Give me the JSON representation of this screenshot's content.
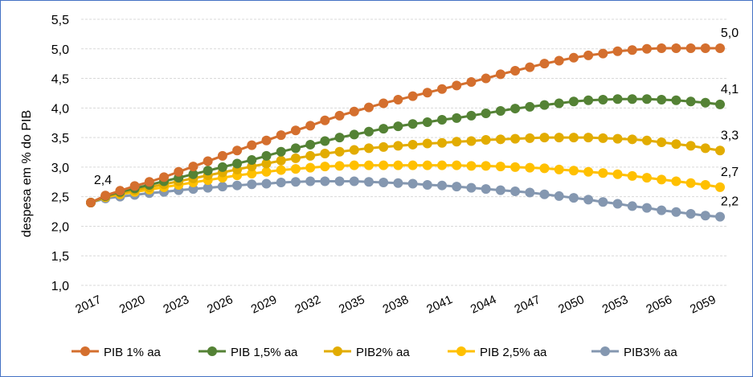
{
  "chart_data": {
    "type": "line",
    "title": "",
    "xlabel": "",
    "ylabel": "despesa em % do PIB",
    "ylim": [
      1.0,
      5.5
    ],
    "yticks": [
      "1,0",
      "1,5",
      "2,0",
      "2,5",
      "3,0",
      "3,5",
      "4,0",
      "4,5",
      "5,0",
      "5,5"
    ],
    "x": [
      2017,
      2018,
      2019,
      2020,
      2021,
      2022,
      2023,
      2024,
      2025,
      2026,
      2027,
      2028,
      2029,
      2030,
      2031,
      2032,
      2033,
      2034,
      2035,
      2036,
      2037,
      2038,
      2039,
      2040,
      2041,
      2042,
      2043,
      2044,
      2045,
      2046,
      2047,
      2048,
      2049,
      2050,
      2051,
      2052,
      2053,
      2054,
      2055,
      2056,
      2057,
      2058,
      2059,
      2060
    ],
    "xticks": [
      "2017",
      "2020",
      "2023",
      "2026",
      "2029",
      "2032",
      "2035",
      "2038",
      "2041",
      "2044",
      "2047",
      "2050",
      "2053",
      "2056",
      "2059"
    ],
    "grid": true,
    "legend_position": "bottom",
    "start_label": "2,4",
    "series": [
      {
        "name": "PIB 1% aa",
        "color": "#D46F2E",
        "end_label": "5,0",
        "values": [
          2.4,
          2.52,
          2.6,
          2.68,
          2.75,
          2.83,
          2.92,
          3.01,
          3.1,
          3.19,
          3.28,
          3.37,
          3.45,
          3.54,
          3.62,
          3.7,
          3.79,
          3.87,
          3.94,
          4.01,
          4.08,
          4.14,
          4.2,
          4.26,
          4.32,
          4.38,
          4.44,
          4.5,
          4.57,
          4.63,
          4.69,
          4.75,
          4.8,
          4.85,
          4.89,
          4.92,
          4.96,
          4.98,
          5.0,
          5.01,
          5.01,
          5.01,
          5.01,
          5.01
        ]
      },
      {
        "name": "PIB 1,5% aa",
        "color": "#548235",
        "end_label": "4,1",
        "values": [
          2.4,
          2.51,
          2.58,
          2.64,
          2.7,
          2.76,
          2.82,
          2.88,
          2.94,
          3.0,
          3.06,
          3.12,
          3.19,
          3.26,
          3.32,
          3.38,
          3.44,
          3.5,
          3.55,
          3.6,
          3.65,
          3.69,
          3.73,
          3.76,
          3.8,
          3.83,
          3.87,
          3.91,
          3.95,
          3.99,
          4.02,
          4.05,
          4.08,
          4.11,
          4.13,
          4.14,
          4.15,
          4.15,
          4.15,
          4.14,
          4.13,
          4.11,
          4.09,
          4.06
        ]
      },
      {
        "name": "PIB2% aa",
        "color": "#E2AC00",
        "end_label": "3,3",
        "values": [
          2.4,
          2.5,
          2.56,
          2.61,
          2.66,
          2.71,
          2.76,
          2.81,
          2.86,
          2.91,
          2.96,
          3.01,
          3.06,
          3.11,
          3.15,
          3.19,
          3.23,
          3.26,
          3.29,
          3.32,
          3.34,
          3.36,
          3.38,
          3.4,
          3.41,
          3.43,
          3.44,
          3.46,
          3.47,
          3.48,
          3.49,
          3.5,
          3.5,
          3.5,
          3.5,
          3.49,
          3.48,
          3.47,
          3.45,
          3.42,
          3.39,
          3.36,
          3.32,
          3.28
        ]
      },
      {
        "name": "PIB 2,5% aa",
        "color": "#FFC000",
        "end_label": "2,7",
        "values": [
          2.4,
          2.49,
          2.54,
          2.58,
          2.62,
          2.66,
          2.7,
          2.74,
          2.78,
          2.82,
          2.86,
          2.89,
          2.92,
          2.95,
          2.97,
          2.99,
          3.01,
          3.02,
          3.03,
          3.03,
          3.03,
          3.03,
          3.03,
          3.03,
          3.03,
          3.03,
          3.02,
          3.02,
          3.01,
          3.0,
          2.99,
          2.98,
          2.96,
          2.94,
          2.92,
          2.9,
          2.88,
          2.85,
          2.82,
          2.79,
          2.76,
          2.73,
          2.7,
          2.66
        ]
      },
      {
        "name": "PIB3% aa",
        "color": "#8497B0",
        "end_label": "2,2",
        "values": [
          2.4,
          2.47,
          2.5,
          2.53,
          2.56,
          2.58,
          2.61,
          2.63,
          2.65,
          2.67,
          2.69,
          2.71,
          2.72,
          2.74,
          2.75,
          2.76,
          2.76,
          2.76,
          2.76,
          2.75,
          2.74,
          2.73,
          2.72,
          2.7,
          2.69,
          2.67,
          2.65,
          2.63,
          2.61,
          2.59,
          2.57,
          2.54,
          2.51,
          2.48,
          2.45,
          2.41,
          2.38,
          2.34,
          2.31,
          2.27,
          2.24,
          2.21,
          2.18,
          2.16
        ]
      }
    ]
  }
}
